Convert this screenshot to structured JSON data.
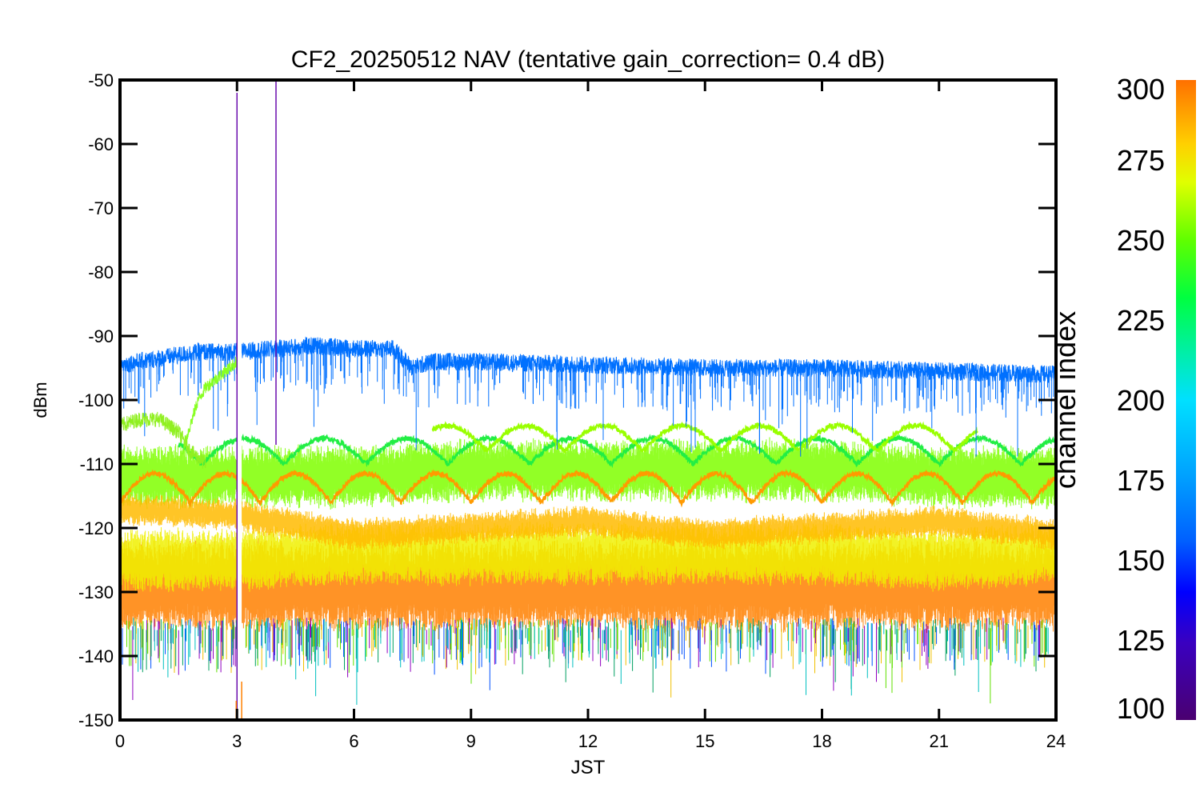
{
  "chart_data": {
    "type": "line",
    "title": "CF2_20250512 NAV (tentative gain_correction=  0.4 dB)",
    "xlabel": "JST",
    "ylabel": "dBm",
    "xlim": [
      0,
      24
    ],
    "ylim": [
      -150,
      -50
    ],
    "xticks": [
      0,
      3,
      6,
      9,
      12,
      15,
      18,
      21,
      24
    ],
    "yticks": [
      -50,
      -60,
      -70,
      -80,
      -90,
      -100,
      -110,
      -120,
      -130,
      -140,
      -150
    ],
    "grid": false,
    "colorbar": {
      "label": "channel index",
      "range": [
        100,
        300
      ],
      "ticks": [
        100,
        125,
        150,
        175,
        200,
        225,
        250,
        275,
        300
      ]
    },
    "gap_region": [
      3.0,
      3.12
    ],
    "spikes": [
      {
        "name": "purple-spike-a",
        "x": 3.0,
        "y_top": -52,
        "y_bottom": -150,
        "color": "#6a0dad"
      },
      {
        "name": "purple-spike-b",
        "x": 4.0,
        "y_top": -50,
        "y_bottom": -107,
        "color": "#6a0dad"
      },
      {
        "name": "orange-spike-a",
        "x": 2.98,
        "y_top": -147,
        "y_bottom": -150,
        "color": "#ff8000"
      },
      {
        "name": "orange-spike-b",
        "x": 3.12,
        "y_top": -144,
        "y_bottom": -150,
        "color": "#ff8000"
      }
    ],
    "bands": [
      {
        "name": "band-orange-noise-floor",
        "channel": 290,
        "color": "#ff8000",
        "center": [
          -129,
          -129,
          -129,
          -129,
          -129,
          -129,
          -129,
          -129,
          -129
        ],
        "half_width": 6
      },
      {
        "name": "band-yellow-noise",
        "channel": 275,
        "color": "#f0f000",
        "center": [
          -125,
          -125,
          -124,
          -124,
          -124,
          -124,
          -124,
          -125,
          -124
        ],
        "half_width": 4
      },
      {
        "name": "band-green-noise",
        "channel": 250,
        "color": "#7fff00",
        "center": [
          -112,
          -112,
          -112,
          -111,
          -111,
          -111,
          -111,
          -112,
          -112
        ],
        "half_width": 4
      },
      {
        "name": "band-yellow-orange-drift",
        "channel": 280,
        "color": "#ffbb00",
        "center": [
          -117,
          -118,
          -121,
          -120,
          -119,
          -121,
          -120,
          -119,
          -121
        ],
        "half_width": 1.8
      }
    ],
    "series": [
      {
        "name": "blue-channel",
        "channel": 150,
        "color": "#0070ff",
        "x": [
          0,
          1,
          2,
          3,
          4,
          5,
          6,
          7,
          7.5,
          8,
          9,
          12,
          15,
          18,
          21,
          24
        ],
        "y": [
          -94.5,
          -93.5,
          -92.5,
          -92.5,
          -92,
          -91.5,
          -92,
          -92,
          -95,
          -94,
          -94,
          -94.5,
          -95,
          -95,
          -95.5,
          -96
        ],
        "noise": 1.4
      },
      {
        "name": "green-rising-trace",
        "channel": 245,
        "color": "#88ff22",
        "x": [
          1.6,
          1.8,
          2.0,
          2.2,
          2.4,
          2.6,
          2.8,
          3.0
        ],
        "y": [
          -108,
          -104,
          -100,
          -98,
          -97,
          -96,
          -95,
          -94
        ],
        "noise": 1.0
      },
      {
        "name": "green-trace-upper",
        "channel": 240,
        "color": "#90f020",
        "x": [
          0,
          0.5,
          1,
          1.5,
          1.8,
          2.2
        ],
        "y": [
          -104,
          -103,
          -103,
          -105,
          -108,
          -110
        ],
        "noise": 1.2
      }
    ],
    "oscillating_series": [
      {
        "name": "bright-green-arc",
        "channel": 230,
        "color": "#22ee44",
        "x_start": 1.5,
        "x_end": 24,
        "period": 2.1,
        "base": -110,
        "amplitude": 4
      },
      {
        "name": "lime-arc",
        "channel": 248,
        "color": "#99ff00",
        "x_start": 8,
        "x_end": 22,
        "period": 2.0,
        "base": -108,
        "amplitude": 4,
        "phase": 0.6
      },
      {
        "name": "orange-arc",
        "channel": 285,
        "color": "#ff9a00",
        "x_start": 0,
        "x_end": 24,
        "period": 1.8,
        "base": -116,
        "amplitude": 4.5
      }
    ]
  }
}
